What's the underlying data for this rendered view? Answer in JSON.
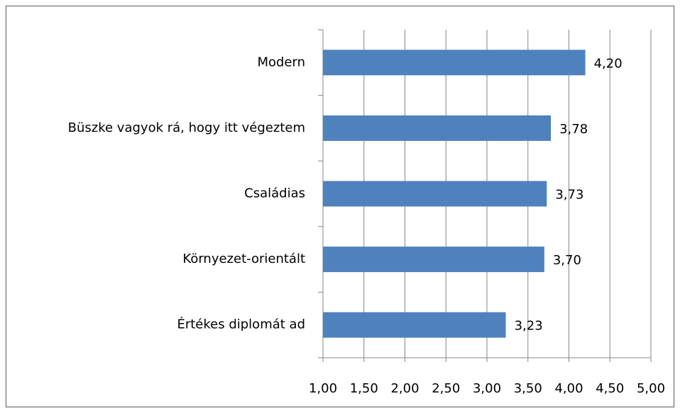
{
  "chart_data": {
    "type": "bar",
    "orientation": "horizontal",
    "categories": [
      "Modern",
      "Büszke vagyok rá, hogy itt végeztem",
      "Családias",
      "Környezet-orientált",
      "Értékes diplomát ad"
    ],
    "values": [
      4.2,
      3.78,
      3.73,
      3.7,
      3.23
    ],
    "value_labels": [
      "4,20",
      "3,78",
      "3,73",
      "3,70",
      "3,23"
    ],
    "color": "#4f81bd",
    "xlim": [
      1,
      5
    ],
    "xticks": [
      {
        "value": 1,
        "label": "1,00"
      },
      {
        "value": 1.5,
        "label": "1,50"
      },
      {
        "value": 2,
        "label": "2,00"
      },
      {
        "value": 2.5,
        "label": "2,50"
      },
      {
        "value": 3,
        "label": "3,00"
      },
      {
        "value": 3.5,
        "label": "3,50"
      },
      {
        "value": 4,
        "label": "4,00"
      },
      {
        "value": 4.5,
        "label": "4,50"
      },
      {
        "value": 5,
        "label": "5,00"
      }
    ],
    "grid": true
  }
}
